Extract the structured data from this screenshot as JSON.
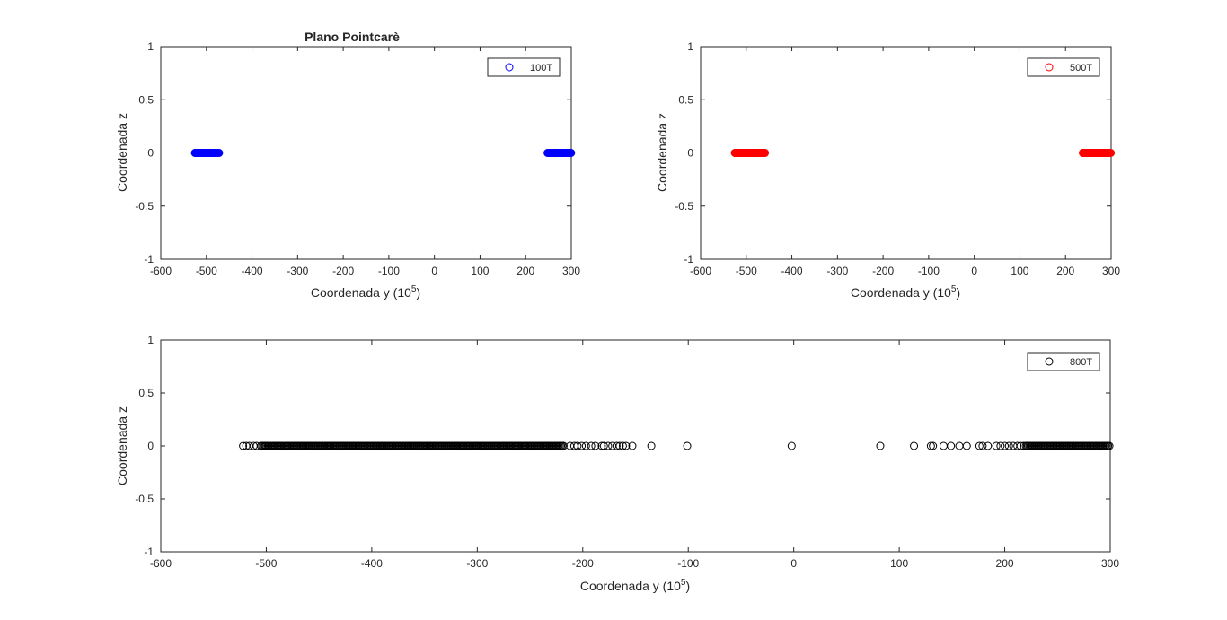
{
  "chart_data": [
    {
      "type": "scatter",
      "title": "Plano Pointcarè",
      "xlabel": "Coordenada y (10",
      "xlabel_exp": "5",
      "xlabel_end": ")",
      "ylabel": "Coordenada z",
      "xlim": [
        -600,
        300
      ],
      "ylim": [
        -1,
        1
      ],
      "xticks": [
        -600,
        -500,
        -400,
        -300,
        -200,
        -100,
        0,
        100,
        200,
        300
      ],
      "yticks": [
        -1,
        -0.5,
        0,
        0.5,
        1
      ],
      "xtick_labels": [
        "-600",
        "-500",
        "-400",
        "-300",
        "-200",
        "-100",
        "0",
        "100",
        "200",
        "300"
      ],
      "ytick_labels": [
        "-1",
        "-0.5",
        "0",
        "0.5",
        "1"
      ],
      "grid": false,
      "legend": "top-right",
      "series": [
        {
          "name": "100T",
          "color": "#0000ff",
          "marker": "circle-open",
          "segments": [
            [
              -525,
              -472
            ],
            [
              248,
              300
            ]
          ]
        }
      ]
    },
    {
      "type": "scatter",
      "title": "",
      "xlabel": "Coordenada y (10",
      "xlabel_exp": "5",
      "xlabel_end": ")",
      "ylabel": "Coordenada z",
      "xlim": [
        -600,
        300
      ],
      "ylim": [
        -1,
        1
      ],
      "xticks": [
        -600,
        -500,
        -400,
        -300,
        -200,
        -100,
        0,
        100,
        200,
        300
      ],
      "yticks": [
        -1,
        -0.5,
        0,
        0.5,
        1
      ],
      "xtick_labels": [
        "-600",
        "-500",
        "-400",
        "-300",
        "-200",
        "-100",
        "0",
        "100",
        "200",
        "300"
      ],
      "ytick_labels": [
        "-1",
        "-0.5",
        "0",
        "0.5",
        "1"
      ],
      "grid": false,
      "legend": "top-right",
      "series": [
        {
          "name": "500T",
          "color": "#ff0000",
          "marker": "circle-open",
          "segments": [
            [
              -525,
              -458
            ],
            [
              238,
              300
            ]
          ]
        }
      ]
    },
    {
      "type": "scatter",
      "title": "",
      "xlabel": "Coordenada y (10",
      "xlabel_exp": "5",
      "xlabel_end": ")",
      "ylabel": "Coordenada z",
      "xlim": [
        -600,
        300
      ],
      "ylim": [
        -1,
        1
      ],
      "xticks": [
        -600,
        -500,
        -400,
        -300,
        -200,
        -100,
        0,
        100,
        200,
        300
      ],
      "yticks": [
        -1,
        -0.5,
        0,
        0.5,
        1
      ],
      "xtick_labels": [
        "-600",
        "-500",
        "-400",
        "-300",
        "-200",
        "-100",
        "0",
        "100",
        "200",
        "300"
      ],
      "ytick_labels": [
        "-1",
        "-0.5",
        "0",
        "0.5",
        "1"
      ],
      "grid": false,
      "legend": "top-right",
      "series": [
        {
          "name": "800T",
          "color": "#000000",
          "marker": "circle-open",
          "segments": [
            [
              -505,
              -218
            ],
            [
              220,
              300
            ]
          ],
          "x": [
            -522,
            -519,
            -516,
            -512,
            -509,
            -501,
            -493,
            -480,
            -465,
            -440,
            -418,
            -390,
            -365,
            -345,
            -320,
            -300,
            -275,
            -255,
            -235,
            -212,
            -208,
            -205,
            -201,
            -197,
            -192,
            -188,
            -182,
            -180,
            -176,
            -172,
            -168,
            -165,
            -162,
            -159,
            -153,
            -135,
            -101,
            -2,
            82,
            114,
            130,
            132,
            142,
            149,
            157,
            164,
            176,
            179,
            184,
            192,
            196,
            200,
            204,
            208,
            212,
            215,
            218
          ],
          "y": [
            0,
            0,
            0,
            0,
            0,
            0,
            0,
            0,
            0,
            0,
            0,
            0,
            0,
            0,
            0,
            0,
            0,
            0,
            0,
            0,
            0,
            0,
            0,
            0,
            0,
            0,
            0,
            0,
            0,
            0,
            0,
            0,
            0,
            0,
            0,
            0,
            0,
            0,
            0,
            0,
            0,
            0,
            0,
            0,
            0,
            0,
            0,
            0,
            0,
            0,
            0,
            0,
            0,
            0,
            0,
            0,
            0
          ]
        }
      ]
    }
  ]
}
